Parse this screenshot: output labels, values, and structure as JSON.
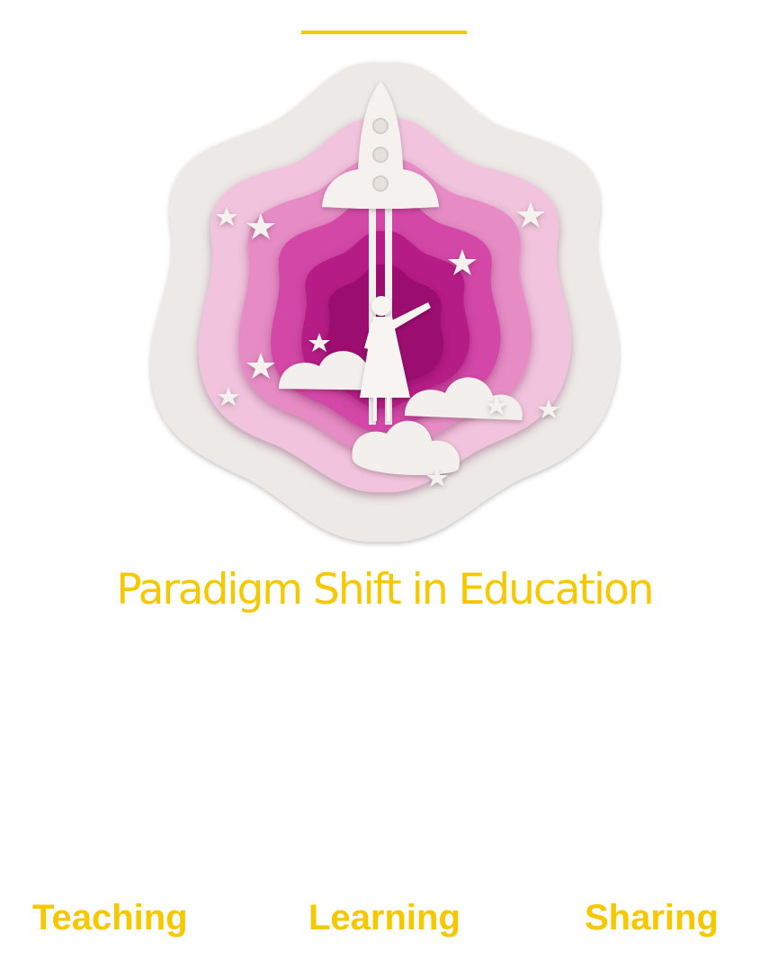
{
  "colors": {
    "accent": "#f5c800",
    "paper": "#efebe8",
    "pink_light": "#f2c6de",
    "pink_mid": "#e98cc7",
    "pink_deep": "#d84aa8",
    "magenta": "#b51e85",
    "magenta_dark": "#990f6f"
  },
  "illustration": {
    "icons": [
      "rocket-icon",
      "girl-silhouette-icon",
      "cloud-icon",
      "star-icon"
    ]
  },
  "headline": "Paradigm Shift in Education",
  "pillars": [
    "Teaching",
    "Learning",
    "Sharing"
  ]
}
